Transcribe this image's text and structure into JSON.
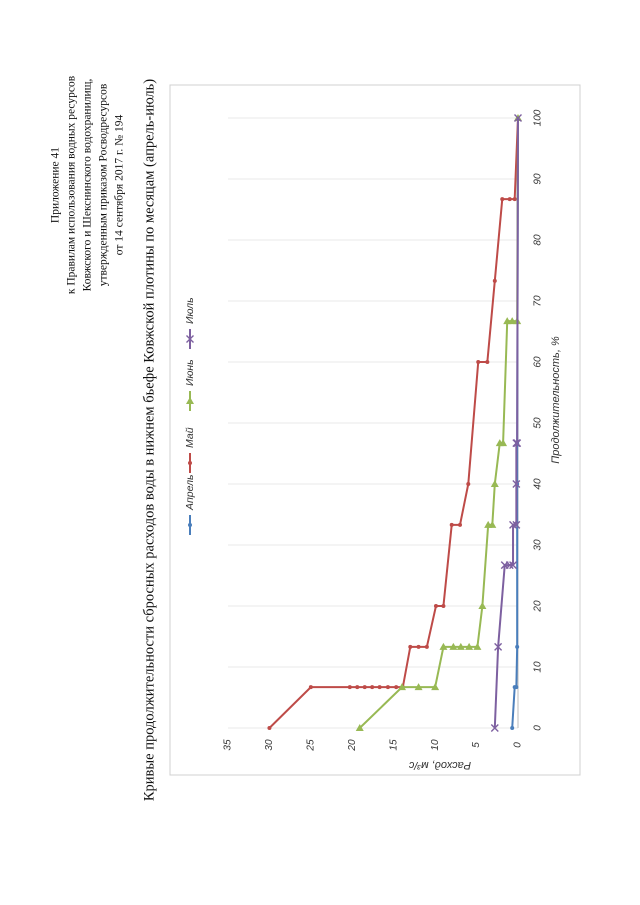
{
  "header": {
    "lines": [
      "Приложение 41",
      "к Правилам использования водных ресурсов",
      "Ковжского и Шекснинского водохранилищ,",
      "утвержденным приказом Росводресурсов",
      "от 14 сентября 2017 г. № 194"
    ]
  },
  "chart_data": {
    "type": "line",
    "title": "Кривые продолжительности сбросных расходов воды в нижнем бьефе Ковжской плотины по месяцам (апрель-июль)",
    "x_label": "Продолжительность, %",
    "y_label": "Расход, м³/с",
    "xlim": [
      0,
      100
    ],
    "xticks": [
      0,
      10,
      20,
      30,
      40,
      50,
      60,
      70,
      80,
      90,
      100
    ],
    "ylim": [
      0,
      35
    ],
    "yticks": [
      0,
      5,
      10,
      15,
      20,
      25,
      30,
      35
    ],
    "grid": "x",
    "series": [
      {
        "name": "Апрель",
        "color": "#4a7ebb",
        "marker": "circle",
        "x": [
          0,
          6.7,
          6.7,
          13.3,
          40,
          46.7,
          100
        ],
        "values": [
          0.7,
          0.4,
          0.2,
          0.1,
          0.1,
          0.1,
          0
        ]
      },
      {
        "name": "Май",
        "color": "#be4b48",
        "marker": "circle",
        "x": [
          0,
          6.7,
          6.7,
          6.7,
          6.7,
          6.7,
          6.7,
          6.7,
          6.7,
          6.7,
          13.3,
          13.3,
          13.3,
          20,
          20,
          33.3,
          33.3,
          40,
          60,
          60,
          73.3,
          86.7,
          86.7,
          86.7,
          100
        ],
        "values": [
          30,
          25,
          20.3,
          19.4,
          18.5,
          17.6,
          16.7,
          15.7,
          14.7,
          13.9,
          13,
          12,
          11,
          9.9,
          9,
          8,
          7,
          6,
          4.8,
          3.7,
          2.8,
          1.9,
          1,
          0.4,
          0
        ]
      },
      {
        "name": "Июнь",
        "color": "#98b954",
        "marker": "triangle",
        "x": [
          0,
          6.7,
          6.7,
          6.7,
          13.3,
          13.3,
          13.3,
          13.3,
          13.3,
          20,
          33.3,
          33.3,
          40,
          46.7,
          46.7,
          66.7,
          66.7,
          66.7,
          100
        ],
        "values": [
          19.1,
          14,
          12,
          10,
          9,
          7.8,
          6.9,
          5.9,
          4.9,
          4.3,
          3.6,
          3.1,
          2.8,
          2.2,
          1.8,
          1.3,
          0.7,
          0.1,
          0
        ]
      },
      {
        "name": "Июль",
        "color": "#7d60a0",
        "marker": "cross",
        "x": [
          0,
          13.3,
          26.7,
          26.7,
          26.7,
          33.3,
          33.3,
          40,
          46.7,
          46.7,
          100
        ],
        "values": [
          2.8,
          2.4,
          1.6,
          1.0,
          0.6,
          0.6,
          0.2,
          0.2,
          0.2,
          0.1,
          0
        ]
      }
    ]
  }
}
